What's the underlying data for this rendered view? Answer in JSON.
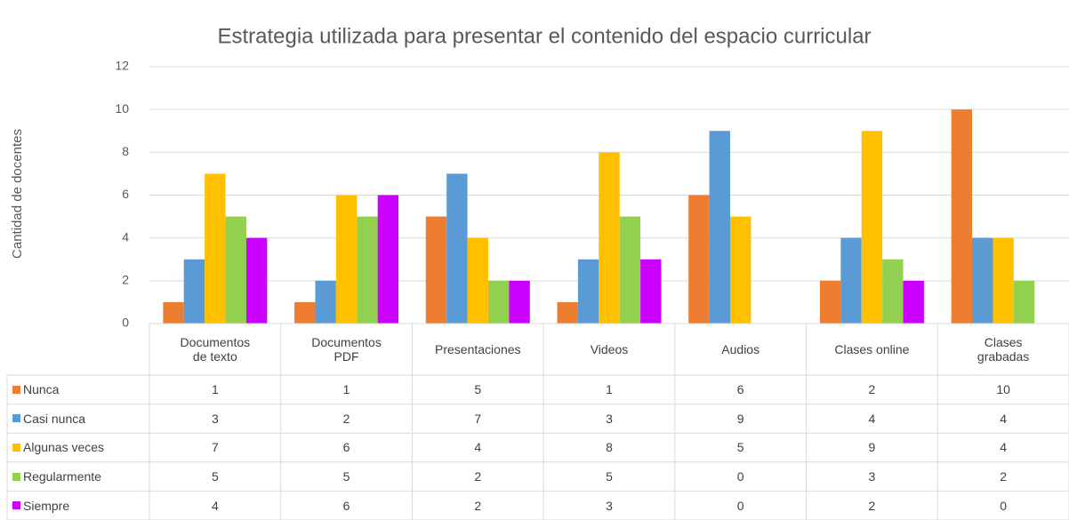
{
  "chart_data": {
    "type": "bar",
    "title": "Estrategia utilizada para presentar el contenido del espacio curricular",
    "y_label": "Cantidad de docentes",
    "categories": [
      "Documentos de texto",
      "Documentos PDF",
      "Presentaciones",
      "Videos",
      "Audios",
      "Clases online",
      "Clases grabadas"
    ],
    "series": [
      {
        "name": "Nunca",
        "color": "#ed7d31",
        "values": [
          1,
          1,
          5,
          1,
          6,
          2,
          10
        ]
      },
      {
        "name": "Casi nunca",
        "color": "#5b9bd5",
        "values": [
          3,
          2,
          7,
          3,
          9,
          4,
          4
        ]
      },
      {
        "name": "Algunas veces",
        "color": "#ffc000",
        "values": [
          7,
          6,
          4,
          8,
          5,
          9,
          4
        ]
      },
      {
        "name": "Regularmente",
        "color": "#92d050",
        "values": [
          5,
          5,
          2,
          5,
          0,
          3,
          2
        ]
      },
      {
        "name": "Siempre",
        "color": "#cc00ff",
        "values": [
          4,
          6,
          2,
          3,
          0,
          2,
          0
        ]
      }
    ],
    "ylim": [
      0,
      12
    ],
    "yticks": [
      0,
      2,
      4,
      6,
      8,
      10,
      12
    ],
    "grid": true
  }
}
